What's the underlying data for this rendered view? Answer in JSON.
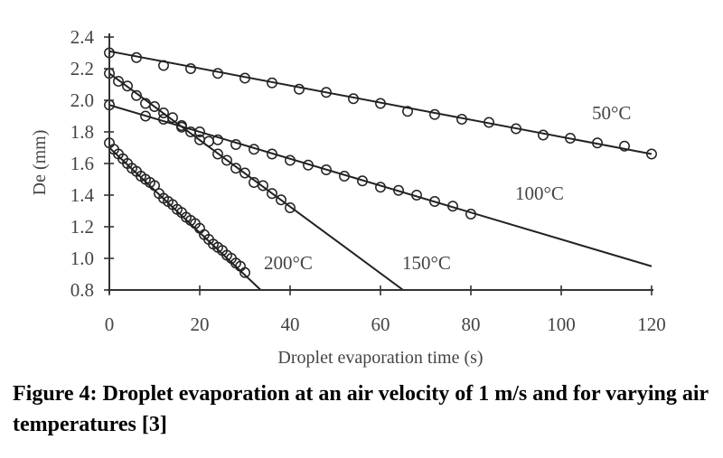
{
  "chart_data": {
    "type": "scatter",
    "xlabel": "Droplet evaporation time (s)",
    "ylabel": "De (mm)",
    "xlim": [
      0,
      120
    ],
    "ylim": [
      0.8,
      2.4
    ],
    "xticks": [
      "0",
      "20",
      "40",
      "60",
      "80",
      "100",
      "120"
    ],
    "yticks": [
      "0.8",
      "1.0",
      "1.2",
      "1.4",
      "1.6",
      "1.8",
      "2.0",
      "2.2",
      "2.4"
    ],
    "grid": false,
    "legend": "none",
    "marker": "open-circle",
    "series": [
      {
        "name": "50°C",
        "points": [
          [
            0,
            2.3
          ],
          [
            6,
            2.27
          ],
          [
            12,
            2.22
          ],
          [
            18,
            2.2
          ],
          [
            24,
            2.17
          ],
          [
            30,
            2.14
          ],
          [
            36,
            2.11
          ],
          [
            42,
            2.07
          ],
          [
            48,
            2.05
          ],
          [
            54,
            2.01
          ],
          [
            60,
            1.98
          ],
          [
            66,
            1.93
          ],
          [
            72,
            1.91
          ],
          [
            78,
            1.88
          ],
          [
            84,
            1.86
          ],
          [
            90,
            1.82
          ],
          [
            96,
            1.78
          ],
          [
            102,
            1.76
          ],
          [
            108,
            1.73
          ],
          [
            114,
            1.71
          ],
          [
            120,
            1.66
          ]
        ],
        "fit": [
          [
            0,
            2.31
          ],
          [
            120,
            1.66
          ]
        ]
      },
      {
        "name": "100°C",
        "points": [
          [
            0,
            1.97
          ],
          [
            8,
            1.9
          ],
          [
            12,
            1.88
          ],
          [
            16,
            1.84
          ],
          [
            20,
            1.8
          ],
          [
            24,
            1.75
          ],
          [
            28,
            1.72
          ],
          [
            32,
            1.69
          ],
          [
            36,
            1.66
          ],
          [
            40,
            1.62
          ],
          [
            44,
            1.59
          ],
          [
            48,
            1.56
          ],
          [
            52,
            1.52
          ],
          [
            56,
            1.49
          ],
          [
            60,
            1.45
          ],
          [
            64,
            1.43
          ],
          [
            68,
            1.4
          ],
          [
            72,
            1.36
          ],
          [
            76,
            1.33
          ],
          [
            80,
            1.28
          ]
        ],
        "fit": [
          [
            0,
            1.97
          ],
          [
            120,
            0.95
          ]
        ]
      },
      {
        "name": "150°C",
        "points": [
          [
            0,
            2.17
          ],
          [
            2,
            2.12
          ],
          [
            4,
            2.09
          ],
          [
            6,
            2.03
          ],
          [
            8,
            1.98
          ],
          [
            10,
            1.96
          ],
          [
            12,
            1.92
          ],
          [
            14,
            1.89
          ],
          [
            16,
            1.83
          ],
          [
            18,
            1.8
          ],
          [
            20,
            1.75
          ],
          [
            22,
            1.74
          ],
          [
            24,
            1.66
          ],
          [
            26,
            1.62
          ],
          [
            28,
            1.57
          ],
          [
            30,
            1.54
          ],
          [
            32,
            1.48
          ],
          [
            34,
            1.46
          ],
          [
            36,
            1.41
          ],
          [
            38,
            1.37
          ],
          [
            40,
            1.32
          ]
        ],
        "fit": [
          [
            0,
            2.17
          ],
          [
            65,
            0.8
          ]
        ]
      },
      {
        "name": "200°C",
        "points": [
          [
            0,
            1.73
          ],
          [
            1,
            1.69
          ],
          [
            2,
            1.66
          ],
          [
            3,
            1.63
          ],
          [
            4,
            1.6
          ],
          [
            5,
            1.57
          ],
          [
            6,
            1.55
          ],
          [
            7,
            1.52
          ],
          [
            8,
            1.5
          ],
          [
            9,
            1.48
          ],
          [
            10,
            1.46
          ],
          [
            11,
            1.41
          ],
          [
            12,
            1.38
          ],
          [
            13,
            1.36
          ],
          [
            14,
            1.34
          ],
          [
            15,
            1.31
          ],
          [
            16,
            1.29
          ],
          [
            17,
            1.26
          ],
          [
            18,
            1.24
          ],
          [
            19,
            1.22
          ],
          [
            20,
            1.19
          ],
          [
            21,
            1.15
          ],
          [
            22,
            1.12
          ],
          [
            23,
            1.09
          ],
          [
            24,
            1.07
          ],
          [
            25,
            1.05
          ],
          [
            26,
            1.02
          ],
          [
            27,
            1.0
          ],
          [
            28,
            0.97
          ],
          [
            29,
            0.95
          ],
          [
            30,
            0.91
          ]
        ],
        "fit": [
          [
            0,
            1.7
          ],
          [
            33.5,
            0.8
          ]
        ]
      }
    ]
  },
  "caption": "Figure 4: Droplet evaporation at an air velocity of 1 m/s and for varying air temperatures [3]"
}
